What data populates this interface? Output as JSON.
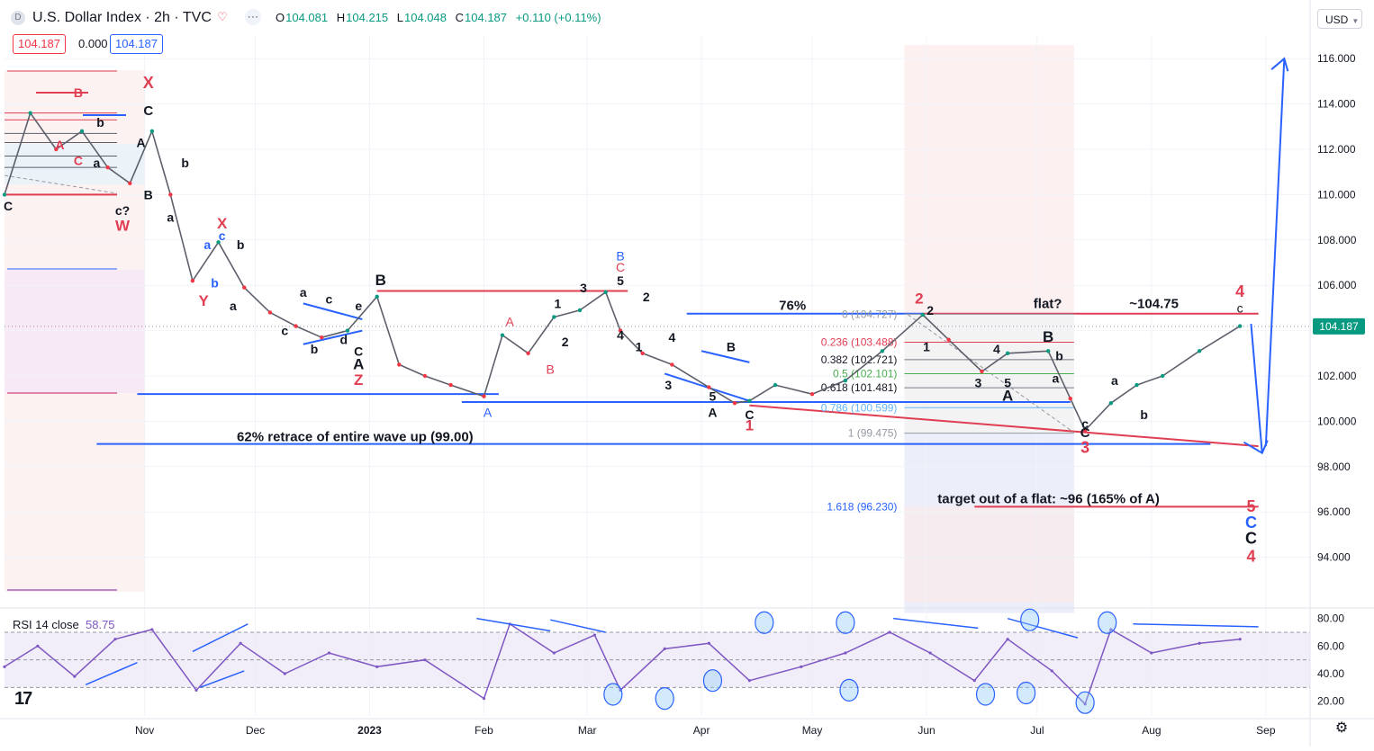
{
  "header": {
    "symbol_initial": "D",
    "title": "U.S. Dollar Index · 2h · TVC",
    "ohlc": [
      {
        "k": "O",
        "v": "104.081"
      },
      {
        "k": "H",
        "v": "104.215"
      },
      {
        "k": "L",
        "v": "104.048"
      },
      {
        "k": "C",
        "v": "104.187"
      },
      {
        "k": "",
        "v": "+0.110 (+0.11%)"
      }
    ],
    "bid": "104.187",
    "spread": "0.000",
    "ask": "104.187",
    "currency": "USD",
    "icons": [
      "tv-logo-icon",
      "heart-icon",
      "more-icon",
      "gear-icon"
    ]
  },
  "chart_data": {
    "type": "line",
    "series": [
      {
        "name": "U.S. Dollar Index",
        "x": [
          "2022-09-24",
          "2022-10-01",
          "2022-10-08",
          "2022-10-15",
          "2022-10-22",
          "2022-10-28",
          "2022-11-03",
          "2022-11-08",
          "2022-11-14",
          "2022-11-21",
          "2022-11-28",
          "2022-12-05",
          "2022-12-12",
          "2022-12-19",
          "2022-12-26",
          "2023-01-03",
          "2023-01-09",
          "2023-01-16",
          "2023-01-23",
          "2023-02-01",
          "2023-02-06",
          "2023-02-13",
          "2023-02-20",
          "2023-02-27",
          "2023-03-06",
          "2023-03-10",
          "2023-03-16",
          "2023-03-24",
          "2023-04-03",
          "2023-04-10",
          "2023-04-14",
          "2023-04-21",
          "2023-05-01",
          "2023-05-10",
          "2023-05-20",
          "2023-05-31",
          "2023-06-07",
          "2023-06-16",
          "2023-06-23",
          "2023-07-04",
          "2023-07-10",
          "2023-07-14",
          "2023-07-21",
          "2023-07-28",
          "2023-08-04",
          "2023-08-14",
          "2023-08-25"
        ],
        "y": [
          110.0,
          113.6,
          112.0,
          112.8,
          111.2,
          110.5,
          112.8,
          110.0,
          106.2,
          107.9,
          105.9,
          104.8,
          104.2,
          103.7,
          104.0,
          105.5,
          102.5,
          102.0,
          101.6,
          101.1,
          103.8,
          103.0,
          104.6,
          104.9,
          105.7,
          104.0,
          103.0,
          102.5,
          101.5,
          100.8,
          100.9,
          101.6,
          101.2,
          101.8,
          103.1,
          104.7,
          103.6,
          102.2,
          103.0,
          103.1,
          101.0,
          99.6,
          100.8,
          101.6,
          102.0,
          103.1,
          104.2
        ]
      }
    ],
    "rsi": {
      "name": "RSI 14 close",
      "last": "58.75",
      "x": [
        "2022-09-24",
        "2022-10-03",
        "2022-10-13",
        "2022-10-24",
        "2022-11-03",
        "2022-11-15",
        "2022-11-27",
        "2022-12-09",
        "2022-12-21",
        "2023-01-03",
        "2023-01-16",
        "2023-02-01",
        "2023-02-08",
        "2023-02-20",
        "2023-03-03",
        "2023-03-10",
        "2023-03-22",
        "2023-04-03",
        "2023-04-14",
        "2023-04-28",
        "2023-05-10",
        "2023-05-22",
        "2023-06-02",
        "2023-06-14",
        "2023-06-23",
        "2023-07-05",
        "2023-07-14",
        "2023-07-21",
        "2023-08-01",
        "2023-08-14",
        "2023-08-25"
      ],
      "y": [
        45,
        60,
        38,
        65,
        72,
        28,
        62,
        40,
        55,
        45,
        50,
        22,
        76,
        55,
        68,
        28,
        58,
        62,
        35,
        45,
        55,
        70,
        55,
        35,
        65,
        42,
        18,
        72,
        55,
        62,
        65
      ],
      "levels": [
        70,
        50,
        30
      ],
      "ylim": [
        10,
        85
      ],
      "ticks": [
        "80.00",
        "60.00",
        "40.00",
        "20.00"
      ]
    },
    "ylim": [
      92,
      117
    ],
    "y_ticks": [
      "116.000",
      "114.000",
      "112.000",
      "110.000",
      "108.000",
      "106.000",
      "104.000",
      "102.000",
      "100.000",
      "98.000",
      "96.000",
      "94.000"
    ],
    "x_ticks": [
      {
        "label": "Nov",
        "date": "2022-11-01"
      },
      {
        "label": "Dec",
        "date": "2022-12-01"
      },
      {
        "label": "2023",
        "date": "2023-01-01"
      },
      {
        "label": "Feb",
        "date": "2023-02-01"
      },
      {
        "label": "Mar",
        "date": "2023-03-01"
      },
      {
        "label": "Apr",
        "date": "2023-04-01"
      },
      {
        "label": "May",
        "date": "2023-05-01"
      },
      {
        "label": "Jun",
        "date": "2023-06-01"
      },
      {
        "label": "Jul",
        "date": "2023-07-01"
      },
      {
        "label": "Aug",
        "date": "2023-08-01"
      },
      {
        "label": "Sep",
        "date": "2023-09-01"
      }
    ],
    "last_price_label": "104.187",
    "fib": [
      {
        "ratio": "0",
        "label": "0 (104.727)",
        "price": 104.727
      },
      {
        "ratio": "0.236",
        "label": "0.236 (103.488)",
        "price": 103.488
      },
      {
        "ratio": "0.382",
        "label": "0.382 (102.721)",
        "price": 102.721
      },
      {
        "ratio": "0.5",
        "label": "0.5 (102.101)",
        "price": 102.101
      },
      {
        "ratio": "0.618",
        "label": "0.618 (101.481)",
        "price": 101.481
      },
      {
        "ratio": "0.786",
        "label": "0.786 (100.599)",
        "price": 100.599
      },
      {
        "ratio": "1",
        "label": "1 (99.475)",
        "price": 99.475
      },
      {
        "ratio": "1.618",
        "label": "1.618 (96.230)",
        "price": 96.23
      }
    ],
    "annotations": {
      "retrace": "62% retrace of entire wave up (99.00)",
      "pct76": "76%",
      "flat": "flat?",
      "approx": "~104.75",
      "target": "target out of a flat: ~96 (165% of A)"
    },
    "wave_labels": [
      {
        "t": "X",
        "date": "2022-11-02",
        "price": 114.7,
        "color": "#e03e52",
        "size": 18,
        "bold": true
      },
      {
        "t": "C",
        "date": "2022-11-02",
        "price": 113.5,
        "color": "#131722",
        "size": 15,
        "bold": true
      },
      {
        "t": "B",
        "date": "2022-10-14",
        "price": 114.3,
        "color": "#e03e52",
        "size": 14,
        "bold": true
      },
      {
        "t": "b",
        "date": "2022-10-20",
        "price": 113.0,
        "color": "#131722",
        "size": 14,
        "bold": true
      },
      {
        "t": "A",
        "date": "2022-10-09",
        "price": 112.0,
        "color": "#e03e52",
        "size": 14,
        "bold": true
      },
      {
        "t": "C",
        "date": "2022-10-14",
        "price": 111.3,
        "color": "#e03e52",
        "size": 14,
        "bold": true
      },
      {
        "t": "a",
        "date": "2022-10-19",
        "price": 111.2,
        "color": "#131722",
        "size": 14,
        "bold": true
      },
      {
        "t": "A",
        "date": "2022-10-31",
        "price": 112.1,
        "color": "#131722",
        "size": 14,
        "bold": true
      },
      {
        "t": "b",
        "date": "2022-11-12",
        "price": 111.2,
        "color": "#131722",
        "size": 14,
        "bold": true
      },
      {
        "t": "B",
        "date": "2022-11-02",
        "price": 109.8,
        "color": "#131722",
        "size": 14,
        "bold": true
      },
      {
        "t": "C",
        "date": "2022-09-25",
        "price": 109.3,
        "color": "#131722",
        "size": 14,
        "bold": true
      },
      {
        "t": "c?",
        "date": "2022-10-26",
        "price": 109.1,
        "color": "#131722",
        "size": 14,
        "bold": true
      },
      {
        "t": "W",
        "date": "2022-10-26",
        "price": 108.4,
        "color": "#e03e52",
        "size": 17,
        "bold": true
      },
      {
        "t": "a",
        "date": "2022-11-08",
        "price": 108.8,
        "color": "#131722",
        "size": 14,
        "bold": true
      },
      {
        "t": "X",
        "date": "2022-11-22",
        "price": 108.5,
        "color": "#e03e52",
        "size": 17,
        "bold": true
      },
      {
        "t": "a",
        "date": "2022-11-18",
        "price": 107.6,
        "color": "#2962ff",
        "size": 14,
        "bold": true
      },
      {
        "t": "c",
        "date": "2022-11-22",
        "price": 108.0,
        "color": "#2962ff",
        "size": 14,
        "bold": true
      },
      {
        "t": "b",
        "date": "2022-11-27",
        "price": 107.6,
        "color": "#131722",
        "size": 14,
        "bold": true
      },
      {
        "t": "b",
        "date": "2022-11-20",
        "price": 105.9,
        "color": "#2962ff",
        "size": 14,
        "bold": true
      },
      {
        "t": "Y",
        "date": "2022-11-17",
        "price": 105.1,
        "color": "#e03e52",
        "size": 17,
        "bold": true
      },
      {
        "t": "a",
        "date": "2022-11-25",
        "price": 104.9,
        "color": "#131722",
        "size": 14,
        "bold": true
      },
      {
        "t": "c",
        "date": "2022-12-09",
        "price": 103.8,
        "color": "#131722",
        "size": 14,
        "bold": true
      },
      {
        "t": "a",
        "date": "2022-12-14",
        "price": 105.5,
        "color": "#131722",
        "size": 14,
        "bold": true
      },
      {
        "t": "c",
        "date": "2022-12-21",
        "price": 105.2,
        "color": "#131722",
        "size": 14,
        "bold": true
      },
      {
        "t": "e",
        "date": "2022-12-29",
        "price": 104.9,
        "color": "#131722",
        "size": 14,
        "bold": true
      },
      {
        "t": "b",
        "date": "2022-12-17",
        "price": 103.0,
        "color": "#131722",
        "size": 14,
        "bold": true
      },
      {
        "t": "d",
        "date": "2022-12-25",
        "price": 103.4,
        "color": "#131722",
        "size": 14,
        "bold": true
      },
      {
        "t": "C",
        "date": "2022-12-29",
        "price": 102.9,
        "color": "#131722",
        "size": 14,
        "bold": true
      },
      {
        "t": "A",
        "date": "2022-12-29",
        "price": 102.3,
        "color": "#131722",
        "size": 17,
        "bold": true
      },
      {
        "t": "Z",
        "date": "2022-12-29",
        "price": 101.6,
        "color": "#e03e52",
        "size": 17,
        "bold": true
      },
      {
        "t": "B",
        "date": "2023-01-04",
        "price": 106.0,
        "color": "#131722",
        "size": 17,
        "bold": true
      },
      {
        "t": "A",
        "date": "2023-02-02",
        "price": 100.2,
        "color": "#2962ff",
        "size": 14,
        "bold": false
      },
      {
        "t": "A",
        "date": "2023-02-08",
        "price": 104.2,
        "color": "#e03e52",
        "size": 14,
        "bold": false
      },
      {
        "t": "B",
        "date": "2023-02-19",
        "price": 102.1,
        "color": "#e03e52",
        "size": 14,
        "bold": false
      },
      {
        "t": "1",
        "date": "2023-02-21",
        "price": 105.0,
        "color": "#131722",
        "size": 14,
        "bold": true
      },
      {
        "t": "2",
        "date": "2023-02-23",
        "price": 103.3,
        "color": "#131722",
        "size": 14,
        "bold": true
      },
      {
        "t": "3",
        "date": "2023-02-28",
        "price": 105.7,
        "color": "#131722",
        "size": 14,
        "bold": true
      },
      {
        "t": "4",
        "date": "2023-03-10",
        "price": 103.6,
        "color": "#131722",
        "size": 14,
        "bold": true
      },
      {
        "t": "5",
        "date": "2023-03-10",
        "price": 106.0,
        "color": "#131722",
        "size": 14,
        "bold": true
      },
      {
        "t": "C",
        "date": "2023-03-10",
        "price": 106.6,
        "color": "#e03e52",
        "size": 14,
        "bold": false
      },
      {
        "t": "B",
        "date": "2023-03-10",
        "price": 107.1,
        "color": "#2962ff",
        "size": 14,
        "bold": false
      },
      {
        "t": "2",
        "date": "2023-03-17",
        "price": 105.3,
        "color": "#131722",
        "size": 14,
        "bold": true
      },
      {
        "t": "1",
        "date": "2023-03-15",
        "price": 103.1,
        "color": "#131722",
        "size": 14,
        "bold": true
      },
      {
        "t": "4",
        "date": "2023-03-24",
        "price": 103.5,
        "color": "#131722",
        "size": 14,
        "bold": true
      },
      {
        "t": "B",
        "date": "2023-04-09",
        "price": 103.1,
        "color": "#131722",
        "size": 14,
        "bold": true
      },
      {
        "t": "3",
        "date": "2023-03-23",
        "price": 101.4,
        "color": "#131722",
        "size": 14,
        "bold": true
      },
      {
        "t": "5",
        "date": "2023-04-04",
        "price": 100.9,
        "color": "#131722",
        "size": 14,
        "bold": true
      },
      {
        "t": "A",
        "date": "2023-04-04",
        "price": 100.2,
        "color": "#131722",
        "size": 14,
        "bold": true
      },
      {
        "t": "C",
        "date": "2023-04-14",
        "price": 100.1,
        "color": "#131722",
        "size": 14,
        "bold": true
      },
      {
        "t": "1",
        "date": "2023-04-14",
        "price": 99.6,
        "color": "#e03e52",
        "size": 17,
        "bold": true
      },
      {
        "t": "2",
        "date": "2023-05-30",
        "price": 105.2,
        "color": "#e03e52",
        "size": 17,
        "bold": true
      },
      {
        "t": "2",
        "date": "2023-06-02",
        "price": 104.7,
        "color": "#131722",
        "size": 14,
        "bold": true
      },
      {
        "t": "1",
        "date": "2023-06-01",
        "price": 103.1,
        "color": "#131722",
        "size": 14,
        "bold": true
      },
      {
        "t": "4",
        "date": "2023-06-20",
        "price": 103.0,
        "color": "#131722",
        "size": 14,
        "bold": true
      },
      {
        "t": "3",
        "date": "2023-06-15",
        "price": 101.5,
        "color": "#131722",
        "size": 14,
        "bold": true
      },
      {
        "t": "5",
        "date": "2023-06-23",
        "price": 101.5,
        "color": "#131722",
        "size": 14,
        "bold": true
      },
      {
        "t": "A",
        "date": "2023-06-23",
        "price": 100.9,
        "color": "#131722",
        "size": 17,
        "bold": true
      },
      {
        "t": "B",
        "date": "2023-07-04",
        "price": 103.5,
        "color": "#131722",
        "size": 17,
        "bold": true
      },
      {
        "t": "b",
        "date": "2023-07-07",
        "price": 102.7,
        "color": "#131722",
        "size": 14,
        "bold": true
      },
      {
        "t": "a",
        "date": "2023-07-06",
        "price": 101.7,
        "color": "#131722",
        "size": 14,
        "bold": true
      },
      {
        "t": "c",
        "date": "2023-07-14",
        "price": 99.7,
        "color": "#131722",
        "size": 14,
        "bold": true
      },
      {
        "t": "C",
        "date": "2023-07-14",
        "price": 99.3,
        "color": "#131722",
        "size": 15,
        "bold": true
      },
      {
        "t": "3",
        "date": "2023-07-14",
        "price": 98.6,
        "color": "#e03e52",
        "size": 18,
        "bold": true
      },
      {
        "t": "a",
        "date": "2023-07-22",
        "price": 101.6,
        "color": "#131722",
        "size": 14,
        "bold": true
      },
      {
        "t": "b",
        "date": "2023-07-30",
        "price": 100.1,
        "color": "#131722",
        "size": 14,
        "bold": true
      },
      {
        "t": "4",
        "date": "2023-08-25",
        "price": 105.5,
        "color": "#e03e52",
        "size": 18,
        "bold": true
      },
      {
        "t": "c",
        "date": "2023-08-25",
        "price": 104.8,
        "color": "#131722",
        "size": 14,
        "bold": false
      },
      {
        "t": "5",
        "date": "2023-08-28",
        "price": 96.0,
        "color": "#e03e52",
        "size": 18,
        "bold": true
      },
      {
        "t": "C",
        "date": "2023-08-28",
        "price": 95.3,
        "color": "#2962ff",
        "size": 18,
        "bold": true
      },
      {
        "t": "C",
        "date": "2023-08-28",
        "price": 94.6,
        "color": "#131722",
        "size": 18,
        "bold": true
      },
      {
        "t": "4",
        "date": "2023-08-28",
        "price": 93.8,
        "color": "#e03e52",
        "size": 18,
        "bold": true
      }
    ]
  }
}
